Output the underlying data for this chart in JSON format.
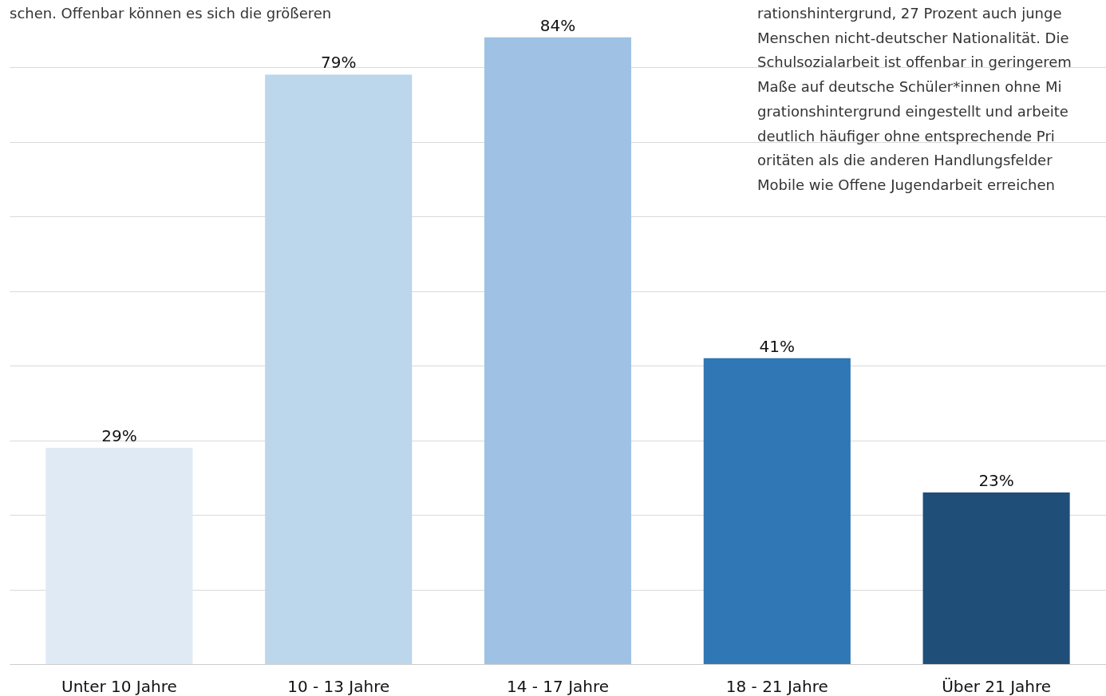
{
  "chart_data": {
    "type": "bar",
    "categories": [
      "Unter 10 Jahre",
      "10 - 13 Jahre",
      "14 - 17 Jahre",
      "18 - 21 Jahre",
      "Über 21 Jahre"
    ],
    "values": [
      29,
      79,
      84,
      41,
      23
    ],
    "colors": [
      "#dfeaf5",
      "#bcd6eb",
      "#9fc2e4",
      "#2f77b5",
      "#1f4e79"
    ],
    "value_labels": [
      "29%",
      "79%",
      "84%",
      "41%",
      "23%"
    ],
    "ylim": [
      0,
      89
    ],
    "yticks": [
      {
        "value": 0,
        "label": null
      },
      {
        "value": 10,
        "label": null
      },
      {
        "value": 20,
        "label": null
      },
      {
        "value": 30,
        "label": null
      },
      {
        "value": 40,
        "label": null
      },
      {
        "value": 50,
        "label": null
      },
      {
        "value": 60,
        "label": null
      },
      {
        "value": 70,
        "label": null
      },
      {
        "value": 80,
        "label": null
      }
    ],
    "grid": "y",
    "tick_labels": "x",
    "annotations": [
      "schen. Offenbar können es sich die größeren",
      "rationshintergrund, 27 Prozent auch junge",
      "Menschen nicht-deutscher Nationalität. Die",
      "Schulsozialarbeit ist offenbar in geringerem",
      "Maße auf deutsche Schüler*innen ohne Mi",
      "grationshintergrund eingestellt und arbeite",
      "deutlich häufiger ohne entsprechende Pri",
      "oritäten als die anderen Handlungsfelder",
      "Mobile wie Offene Jugendarbeit erreichen"
    ]
  }
}
